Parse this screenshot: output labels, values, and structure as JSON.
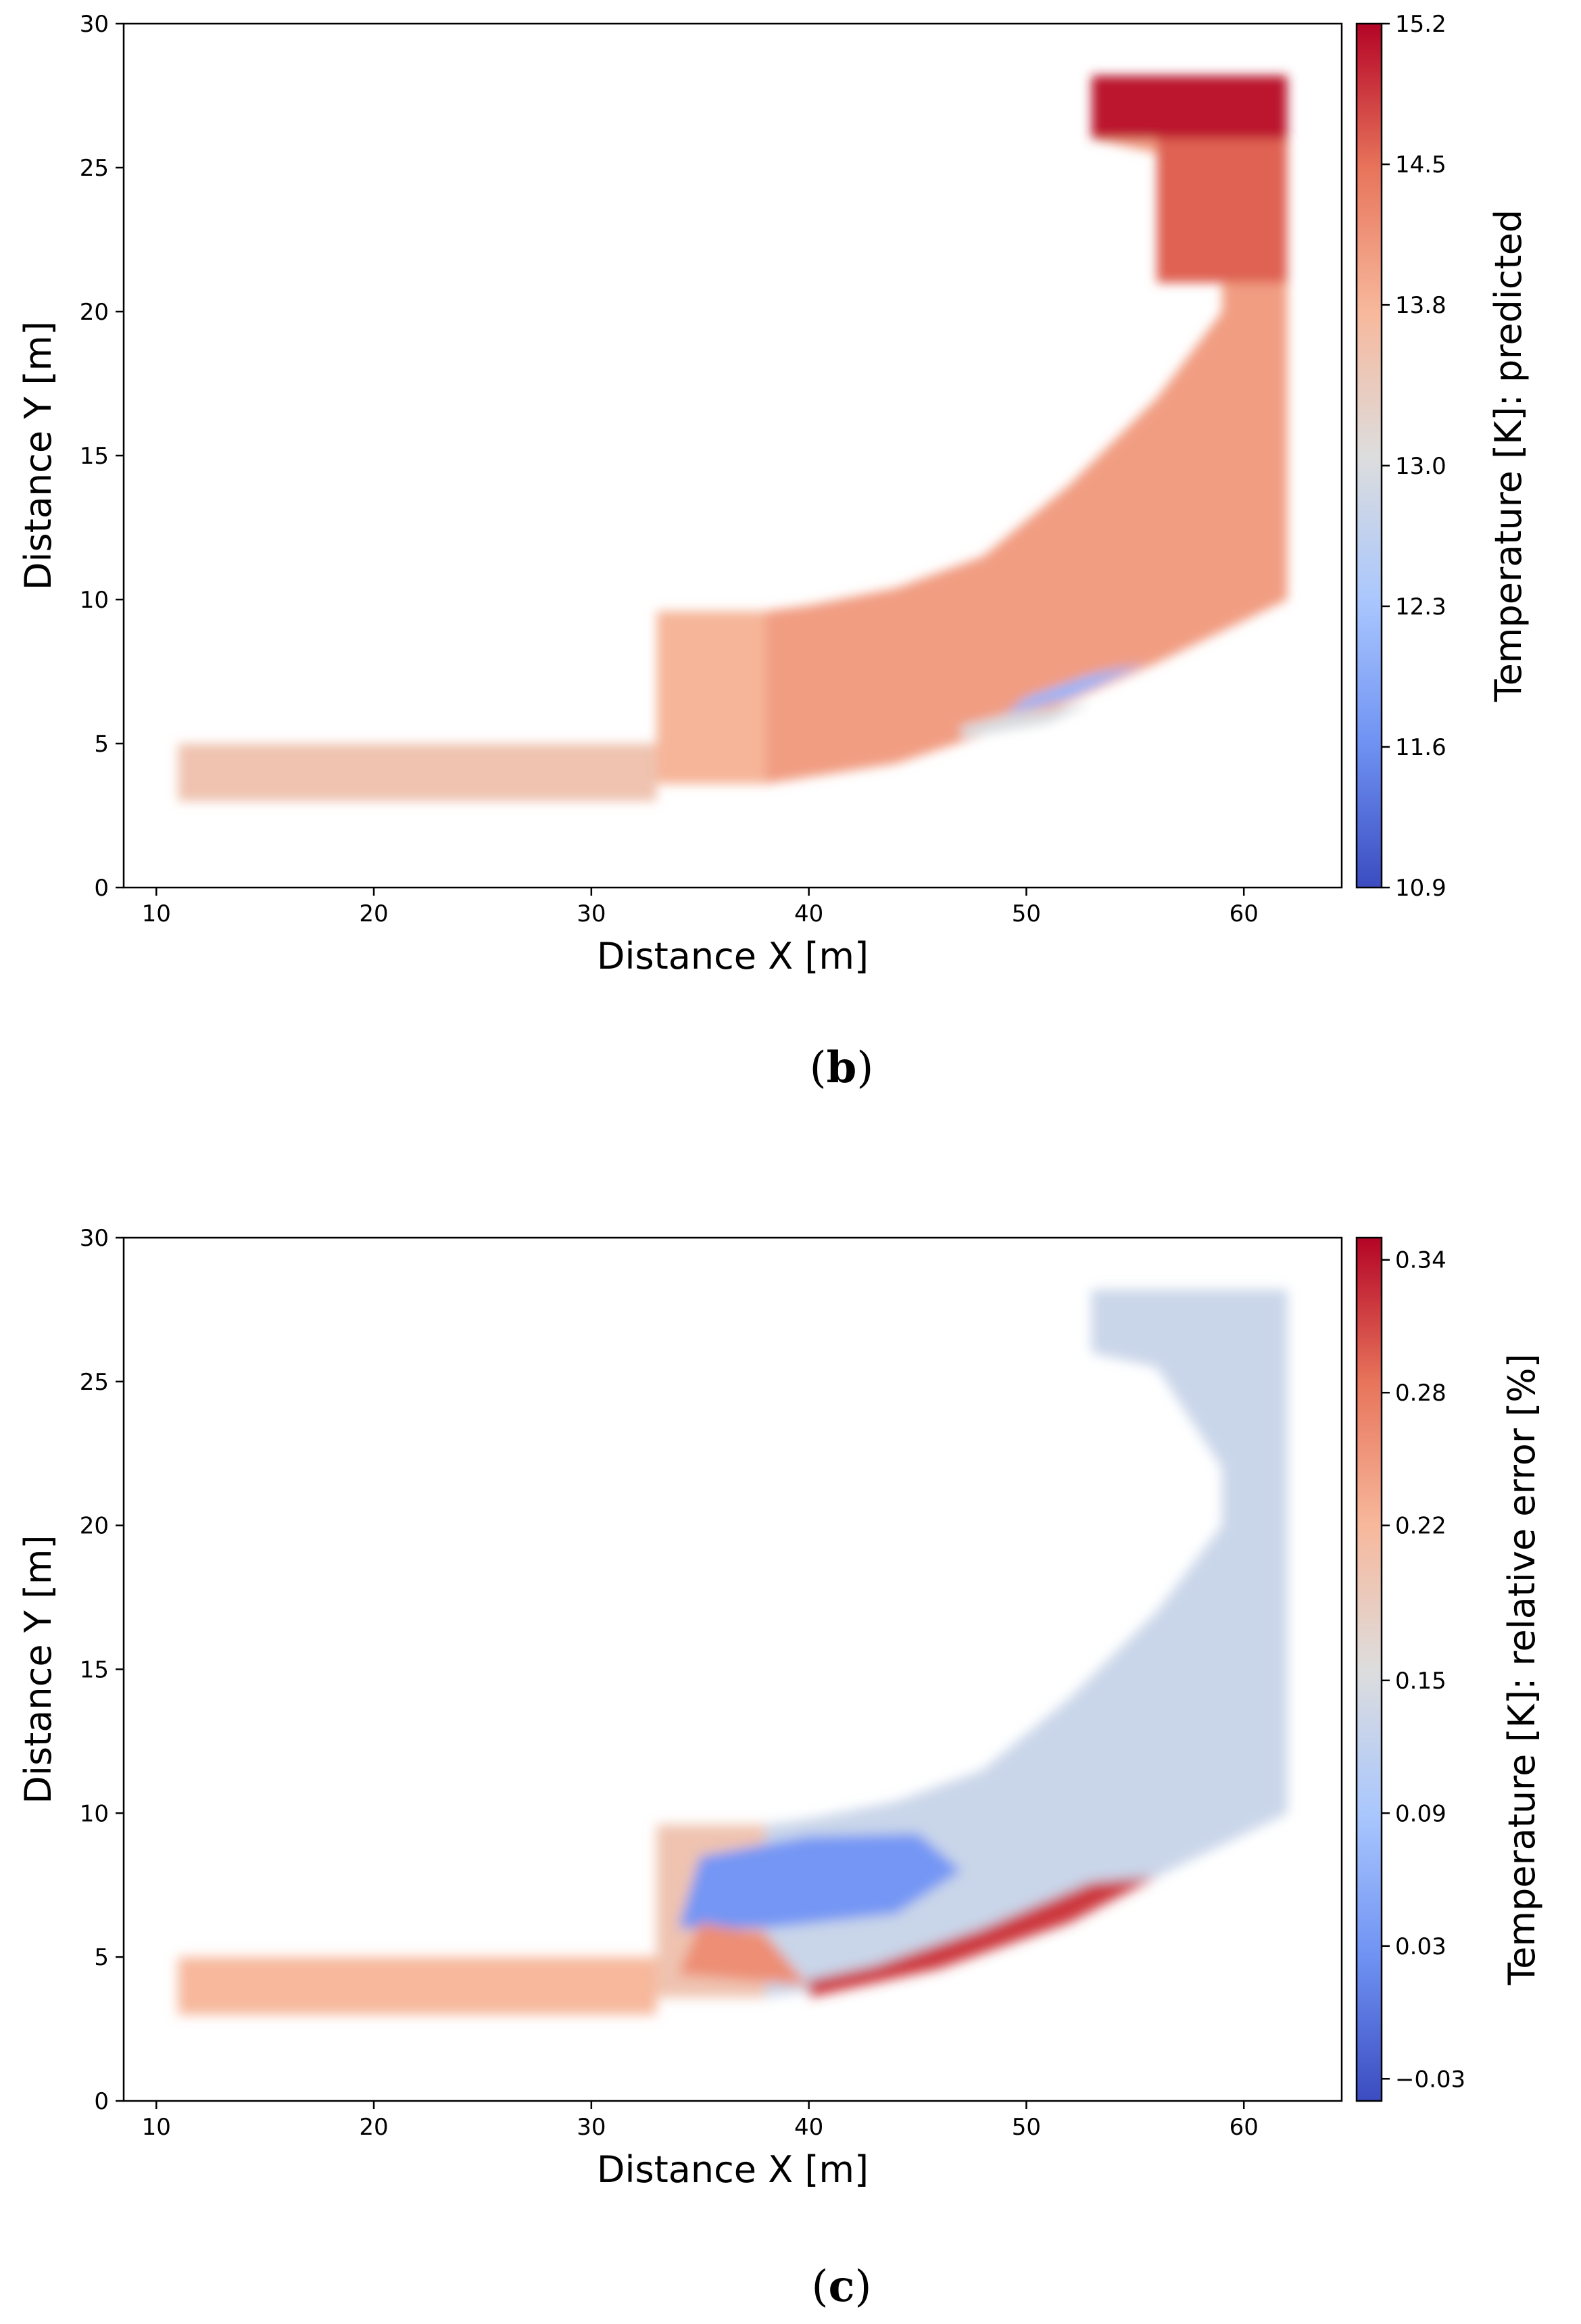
{
  "chart_data": [
    {
      "type": "heatmap",
      "panel": "b",
      "xlabel": "Distance X [m]",
      "ylabel": "Distance Y [m]",
      "xlim": [
        8.5,
        64.5
      ],
      "ylim": [
        0,
        30
      ],
      "xticks": [
        10,
        20,
        30,
        40,
        50,
        60
      ],
      "yticks": [
        0,
        5,
        10,
        15,
        20,
        25,
        30
      ],
      "colorbar": {
        "label": "Temperature [K]: predicted",
        "range": [
          10.9,
          15.2
        ],
        "tick_values": [
          10.9,
          11.6,
          12.3,
          13.0,
          13.8,
          14.5,
          15.2
        ],
        "tick_labels": [
          "10.9",
          "11.6",
          "12.3",
          "13.0",
          "13.8",
          "14.5",
          "15.2"
        ]
      },
      "colormap": [
        "#3b4cc0",
        "#6f92f3",
        "#aac7fd",
        "#dddddd",
        "#f7b89c",
        "#e7745b",
        "#b40426"
      ],
      "regions": [
        {
          "name": "lower-channel",
          "points": [
            [
              11,
              3
            ],
            [
              33,
              3
            ],
            [
              33,
              5
            ],
            [
              11,
              5
            ]
          ],
          "value": 13.55
        },
        {
          "name": "middle-block",
          "points": [
            [
              33,
              3.6
            ],
            [
              38,
              3.6
            ],
            [
              38,
              9.6
            ],
            [
              33,
              9.6
            ]
          ],
          "value": 13.8
        },
        {
          "name": "upper-curved-band",
          "points": [
            [
              38,
              3.6
            ],
            [
              44,
              4.3
            ],
            [
              50,
              5.8
            ],
            [
              56,
              7.8
            ],
            [
              62,
              10
            ],
            [
              62,
              28.2
            ],
            [
              53,
              28.2
            ],
            [
              53,
              26
            ],
            [
              56,
              25.5
            ],
            [
              59,
              22
            ],
            [
              59,
              20
            ],
            [
              56,
              17
            ],
            [
              52,
              14
            ],
            [
              48,
              11.5
            ],
            [
              44,
              10.4
            ],
            [
              40,
              9.8
            ],
            [
              38,
              9.6
            ]
          ],
          "value": 14.05
        },
        {
          "name": "top-block",
          "points": [
            [
              53,
              26
            ],
            [
              62,
              26
            ],
            [
              62,
              28.2
            ],
            [
              53,
              28.2
            ]
          ],
          "value": 15.1
        },
        {
          "name": "top-gradient",
          "points": [
            [
              56,
              21
            ],
            [
              62,
              21
            ],
            [
              62,
              26
            ],
            [
              56,
              26
            ]
          ],
          "value": 14.6
        },
        {
          "name": "cool-wake",
          "points": [
            [
              49,
              6
            ],
            [
              52,
              6.6
            ],
            [
              55.5,
              7.8
            ],
            [
              53,
              7.4
            ],
            [
              50,
              6.6
            ]
          ],
          "value": 12.1
        },
        {
          "name": "neutral-edge",
          "points": [
            [
              47,
              5.2
            ],
            [
              51,
              5.7
            ],
            [
              53,
              6.4
            ],
            [
              49,
              6
            ],
            [
              47,
              5.6
            ]
          ],
          "value": 13.0
        }
      ]
    },
    {
      "type": "heatmap",
      "panel": "c",
      "xlabel": "Distance X [m]",
      "ylabel": "Distance Y [m]",
      "xlim": [
        8.5,
        64.5
      ],
      "ylim": [
        0,
        30
      ],
      "xticks": [
        10,
        20,
        30,
        40,
        50,
        60
      ],
      "yticks": [
        0,
        5,
        10,
        15,
        20,
        25,
        30
      ],
      "colorbar": {
        "label": "Temperature [K]: relative error [%]",
        "range": [
          -0.04,
          0.35
        ],
        "tick_values": [
          -0.03,
          0.03,
          0.09,
          0.15,
          0.22,
          0.28,
          0.34
        ],
        "tick_labels": [
          "−0.03",
          "0.03",
          "0.09",
          "0.15",
          "0.22",
          "0.28",
          "0.34"
        ]
      },
      "colormap": [
        "#3b4cc0",
        "#6f92f3",
        "#aac7fd",
        "#dddddd",
        "#f7b89c",
        "#e7745b",
        "#b40426"
      ],
      "regions": [
        {
          "name": "lower-channel",
          "points": [
            [
              11,
              3
            ],
            [
              33,
              3
            ],
            [
              33,
              5
            ],
            [
              11,
              5
            ]
          ],
          "value": 0.22
        },
        {
          "name": "middle-block",
          "points": [
            [
              33,
              3.6
            ],
            [
              38,
              3.6
            ],
            [
              38,
              9.6
            ],
            [
              33,
              9.6
            ]
          ],
          "value": 0.2
        },
        {
          "name": "upper-curved-band",
          "points": [
            [
              38,
              3.6
            ],
            [
              44,
              4.3
            ],
            [
              50,
              5.8
            ],
            [
              56,
              7.8
            ],
            [
              62,
              10
            ],
            [
              62,
              28.2
            ],
            [
              53,
              28.2
            ],
            [
              53,
              26
            ],
            [
              56,
              25.5
            ],
            [
              59,
              22
            ],
            [
              59,
              20
            ],
            [
              56,
              17
            ],
            [
              52,
              14
            ],
            [
              48,
              11.5
            ],
            [
              44,
              10.4
            ],
            [
              40,
              9.8
            ],
            [
              38,
              9.6
            ]
          ],
          "value": 0.13
        },
        {
          "name": "cold-pocket",
          "points": [
            [
              34,
              6
            ],
            [
              38,
              6
            ],
            [
              44,
              6.5
            ],
            [
              47,
              8
            ],
            [
              45,
              9.3
            ],
            [
              40,
              9.2
            ],
            [
              35,
              8.5
            ]
          ],
          "value": 0.03
        },
        {
          "name": "hot-edge",
          "points": [
            [
              40,
              3.6
            ],
            [
              46,
              4.6
            ],
            [
              52,
              6.2
            ],
            [
              56,
              7.8
            ],
            [
              53,
              7.6
            ],
            [
              48,
              6
            ],
            [
              43,
              4.7
            ],
            [
              40,
              4.2
            ]
          ],
          "value": 0.32
        },
        {
          "name": "warm-mix",
          "points": [
            [
              34,
              4.4
            ],
            [
              40,
              4
            ],
            [
              38,
              5.8
            ],
            [
              35,
              6.2
            ]
          ],
          "value": 0.26
        }
      ]
    }
  ],
  "panels": {
    "b": {
      "label": "b"
    },
    "c": {
      "label": "c"
    }
  }
}
